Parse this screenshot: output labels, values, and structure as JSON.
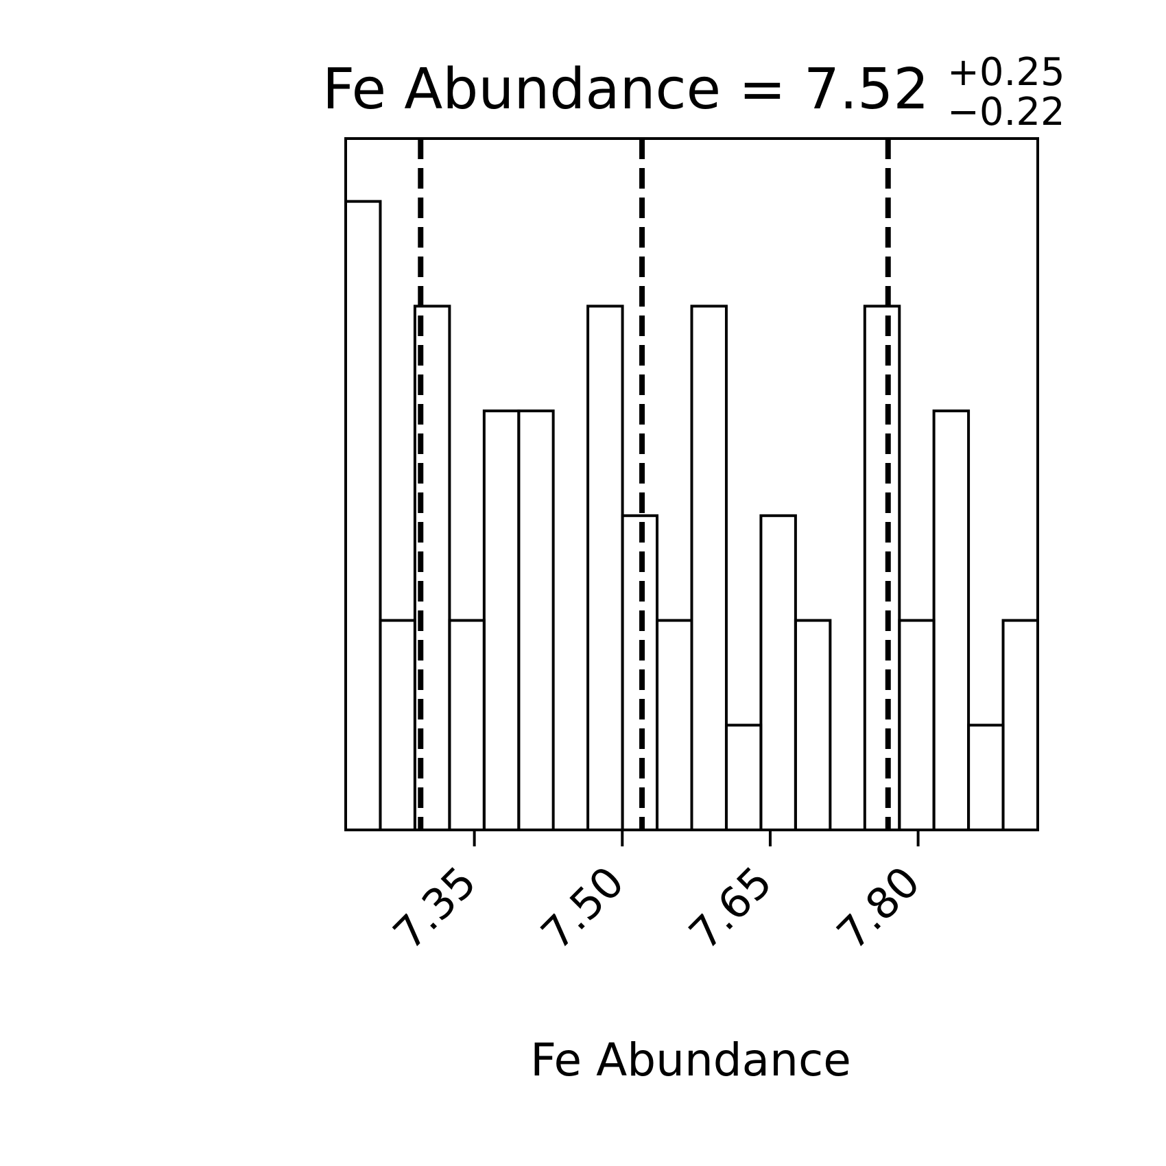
{
  "chart_data": {
    "type": "histogram",
    "title": {
      "prefix": "Fe Abundance = 7.52",
      "plus": "+0.25",
      "minus": "−0.22"
    },
    "xlabel": "Fe Abundance",
    "ylabel": "",
    "xlim": [
      7.2195,
      7.9213
    ],
    "ylim": [
      0,
      6.6
    ],
    "x_ticks": [
      7.35,
      7.5,
      7.65,
      7.8
    ],
    "x_tick_labels": [
      "7.35",
      "7.50",
      "7.65",
      "7.80"
    ],
    "y_ticks_visible": false,
    "grid": false,
    "histtype": "step",
    "bin_edges": [
      7.2195,
      7.2546,
      7.2897,
      7.3248,
      7.3599,
      7.395,
      7.43,
      7.4651,
      7.5002,
      7.5353,
      7.5704,
      7.6055,
      7.6406,
      7.6757,
      7.7108,
      7.7459,
      7.781,
      7.816,
      7.8511,
      7.8862,
      7.9213
    ],
    "counts": [
      6,
      2,
      5,
      2,
      4,
      4,
      0,
      5,
      3,
      2,
      5,
      1,
      3,
      2,
      0,
      5,
      2,
      4,
      1,
      2
    ],
    "quantile_lines": [
      7.2955,
      7.52,
      7.7695
    ],
    "colors": {
      "line": "#000000",
      "background": "#ffffff"
    }
  }
}
